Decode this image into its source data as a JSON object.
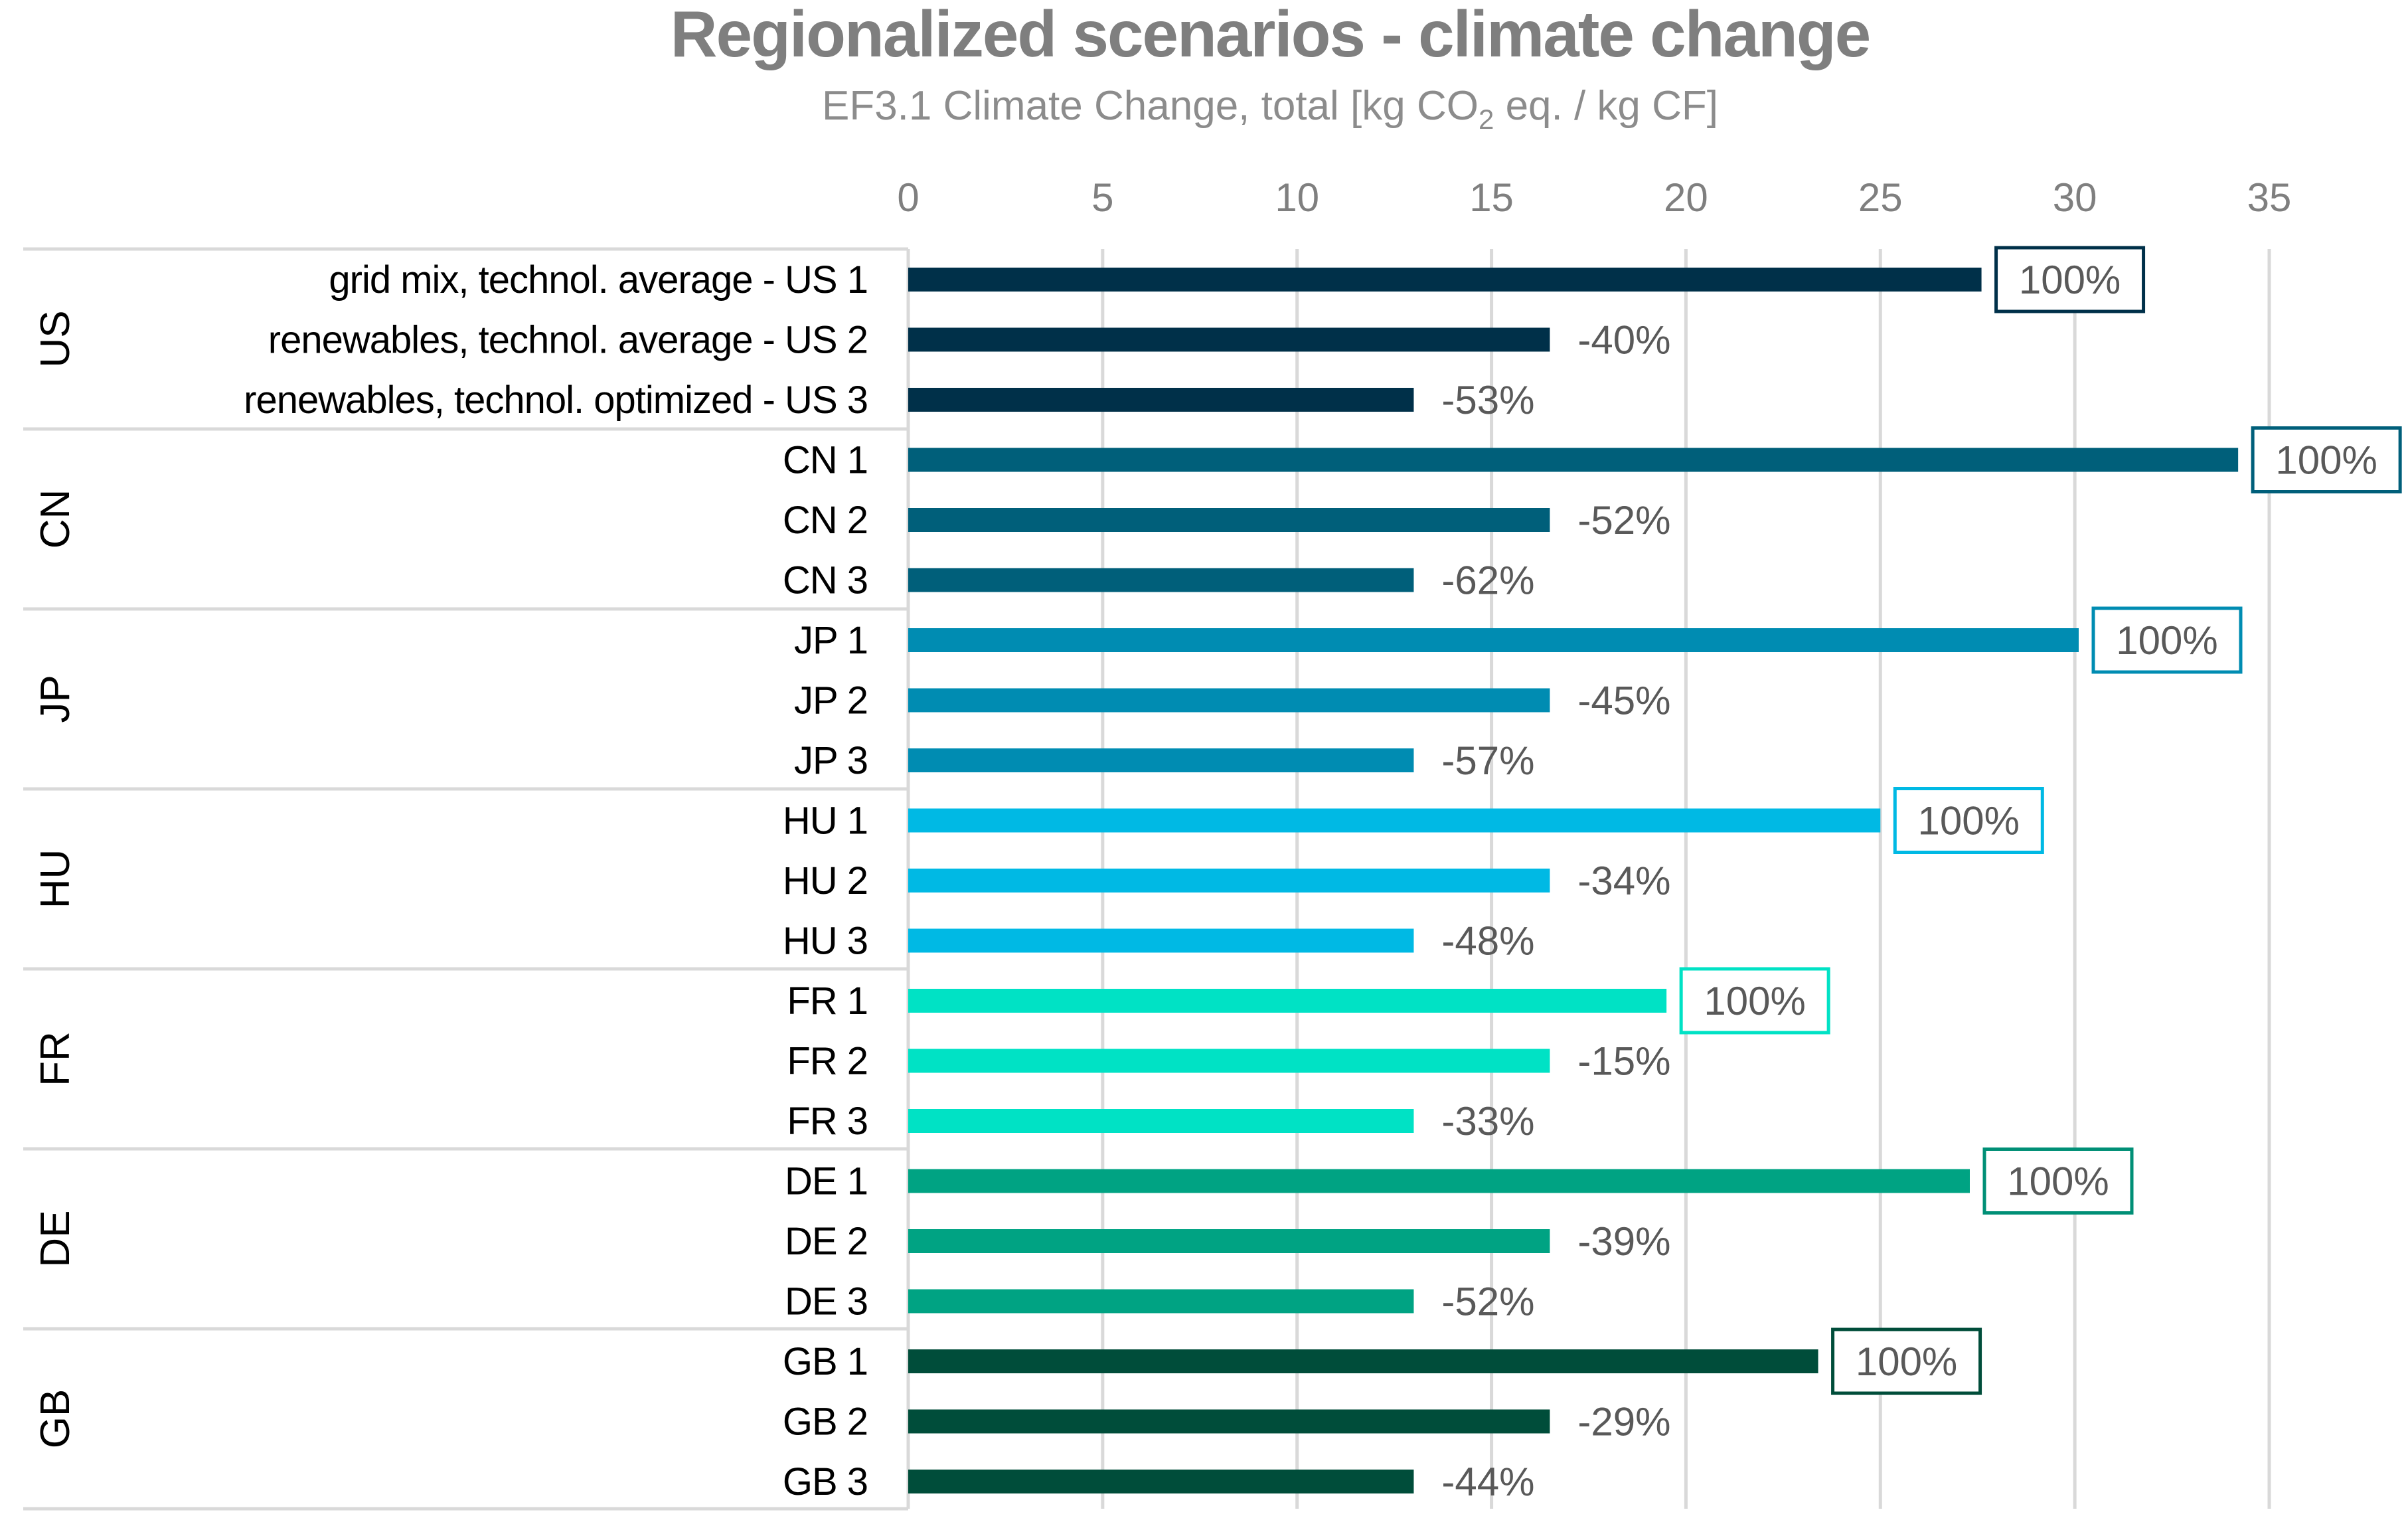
{
  "chart_data": {
    "type": "bar",
    "orientation": "horizontal",
    "title": "Regionalized scenarios - climate change",
    "subtitle": {
      "before_subscript": "EF3.1 Climate Change, total [kg CO",
      "subscript": "2",
      "after_subscript": " eq. / kg CF]"
    },
    "axis": {
      "xlim": [
        0,
        35
      ],
      "ticks": [
        "0",
        "5",
        "10",
        "15",
        "20",
        "25",
        "30",
        "35"
      ],
      "tick_values": [
        0,
        5,
        10,
        15,
        20,
        25,
        30,
        35
      ],
      "position": "top",
      "grid": true
    },
    "groups": [
      {
        "name": "US",
        "color": "#003049",
        "label_box_color": "#003049",
        "label_text_color": "#003049",
        "bars": [
          {
            "label": "grid mix, technol. average  -  US 1",
            "value": 27.6,
            "annotation": "100%"
          },
          {
            "label": "renewables, technol. average  -  US 2",
            "value": 16.5,
            "annotation": "-40%"
          },
          {
            "label": "renewables, technol. optimized  -  US 3",
            "value": 13.0,
            "annotation": "-53%"
          }
        ]
      },
      {
        "name": "CN",
        "color": "#005f7a",
        "label_box_color": "#005f7a",
        "label_text_color": "#005f7a",
        "bars": [
          {
            "label": "CN 1",
            "value": 34.2,
            "annotation": "100%"
          },
          {
            "label": "CN 2",
            "value": 16.5,
            "annotation": "-52%"
          },
          {
            "label": "CN 3",
            "value": 13.0,
            "annotation": "-62%"
          }
        ]
      },
      {
        "name": "JP",
        "color": "#008cb2",
        "label_box_color": "#008cb2",
        "label_text_color": "#008cb2",
        "bars": [
          {
            "label": "JP 1",
            "value": 30.1,
            "annotation": "100%"
          },
          {
            "label": "JP 2",
            "value": 16.5,
            "annotation": "-45%"
          },
          {
            "label": "JP 3",
            "value": 13.0,
            "annotation": "-57%"
          }
        ]
      },
      {
        "name": "HU",
        "color": "#00b9e4",
        "label_box_color": "#00b9e4",
        "label_text_color": "#00b9e4",
        "bars": [
          {
            "label": "HU 1",
            "value": 25.0,
            "annotation": "100%"
          },
          {
            "label": "HU 2",
            "value": 16.5,
            "annotation": "-34%"
          },
          {
            "label": "HU 3",
            "value": 13.0,
            "annotation": "-48%"
          }
        ]
      },
      {
        "name": "FR",
        "color": "#00e2c5",
        "label_box_color": "#00e2c5",
        "label_text_color": "#007a67",
        "bars": [
          {
            "label": "FR 1",
            "value": 19.5,
            "annotation": "100%"
          },
          {
            "label": "FR 2",
            "value": 16.5,
            "annotation": "-15%"
          },
          {
            "label": "FR 3",
            "value": 13.0,
            "annotation": "-33%"
          }
        ]
      },
      {
        "name": "DE",
        "color": "#00a383",
        "label_box_color": "#008f76",
        "label_text_color": "#008f76",
        "bars": [
          {
            "label": "DE 1",
            "value": 27.3,
            "annotation": "100%"
          },
          {
            "label": "DE 2",
            "value": 16.5,
            "annotation": "-39%"
          },
          {
            "label": "DE 3",
            "value": 13.0,
            "annotation": "-52%"
          }
        ]
      },
      {
        "name": "GB",
        "color": "#004d3a",
        "label_box_color": "#004d3a",
        "label_text_color": "#004d3a",
        "bars": [
          {
            "label": "GB 1",
            "value": 23.4,
            "annotation": "100%"
          },
          {
            "label": "GB 2",
            "value": 16.5,
            "annotation": "-29%"
          },
          {
            "label": "GB 3",
            "value": 13.0,
            "annotation": "-44%"
          }
        ]
      }
    ],
    "colors": {
      "title": "#7f7f7f",
      "tick": "#7f7f7f",
      "gridline": "#d9d9d9",
      "divider": "#d9d9d9",
      "annotation": "#595959"
    }
  }
}
